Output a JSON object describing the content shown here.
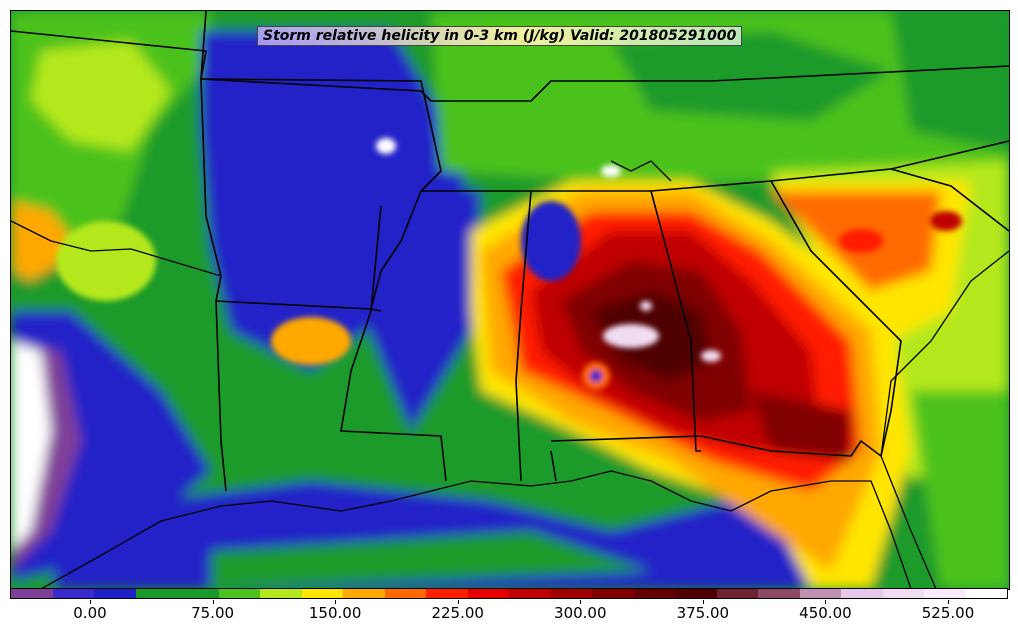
{
  "title": "Storm relative helicity in 0-3 km (J/kg) Valid: 201805291000",
  "colorbar": {
    "colors": [
      "#7f3f98",
      "#3b2bcf",
      "#2020c8",
      "#1a9a2a",
      "#1a9a2a",
      "#4cc21e",
      "#b4e81c",
      "#ffe600",
      "#ffa800",
      "#ff6a00",
      "#ff1e00",
      "#e60000",
      "#c00000",
      "#a00000",
      "#800000",
      "#640000",
      "#500000",
      "#6e2233",
      "#8c4a66",
      "#c090b0",
      "#e8c8e8",
      "#f2dcf2",
      "#fbecfb",
      "#ffffff"
    ],
    "ticks": [
      {
        "label": "0.00",
        "value": 0
      },
      {
        "label": "75.00",
        "value": 75
      },
      {
        "label": "150.00",
        "value": 150
      },
      {
        "label": "225.00",
        "value": 225
      },
      {
        "label": "300.00",
        "value": 300
      },
      {
        "label": "375.00",
        "value": 375
      },
      {
        "label": "450.00",
        "value": 450
      },
      {
        "label": "525.00",
        "value": 525
      }
    ]
  }
}
